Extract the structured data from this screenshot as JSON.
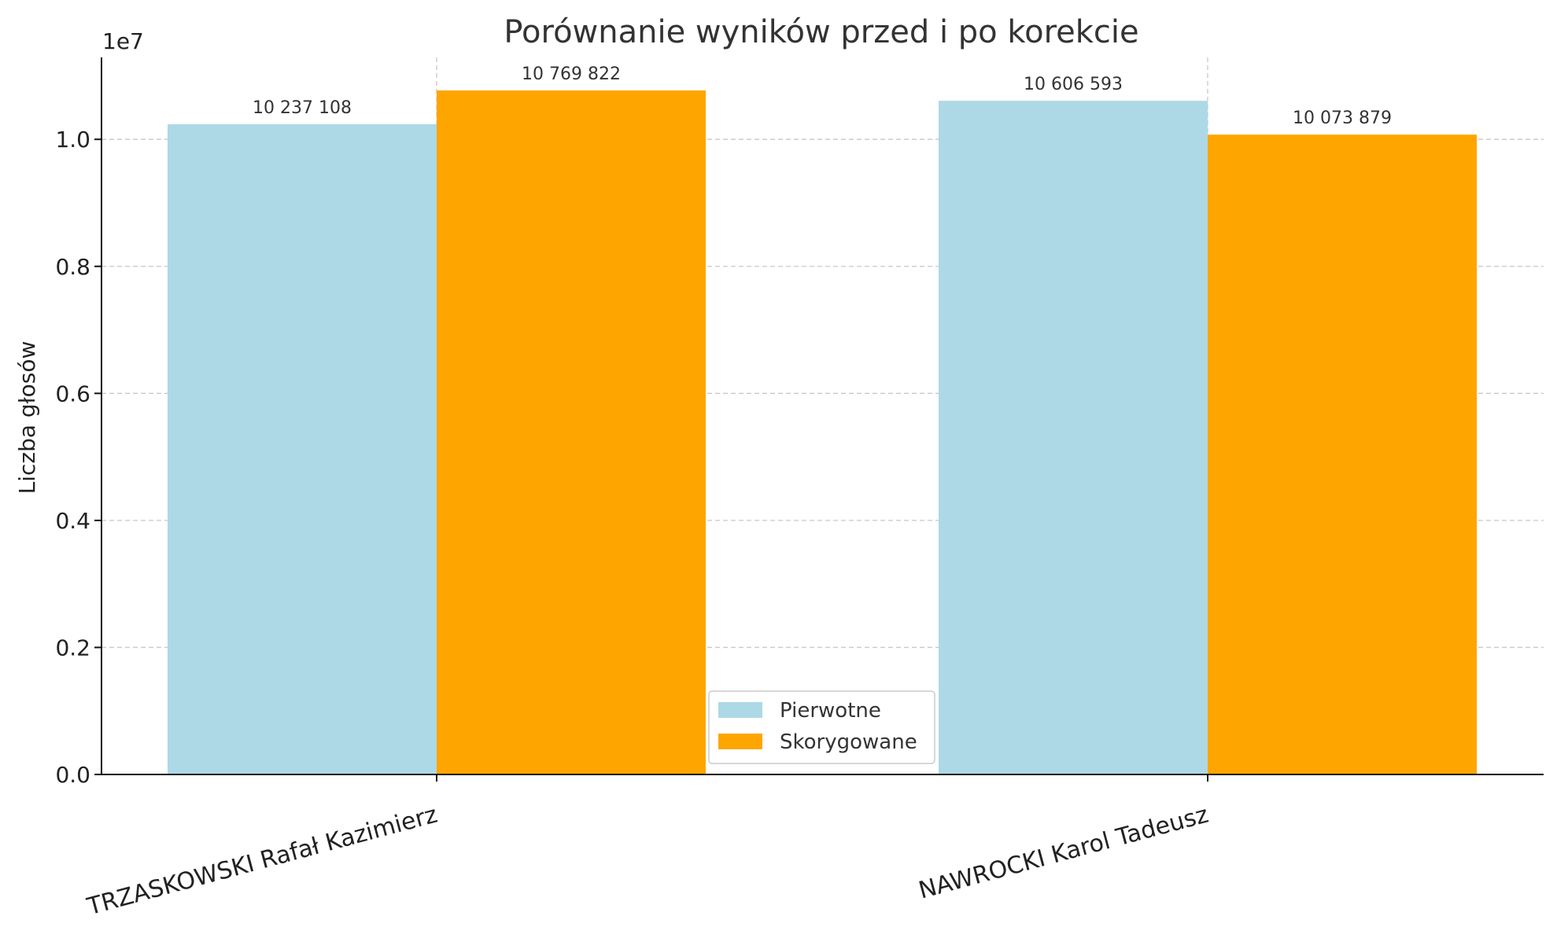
{
  "chart_data": {
    "type": "bar",
    "title": "Porównanie wyników przed i po korekcie",
    "xlabel": "",
    "ylabel": "Liczba głosów",
    "y_exponent_label": "1e7",
    "y_scale": 10000000,
    "ylim": [
      0,
      11290000
    ],
    "yticks": [
      0,
      2000000,
      4000000,
      6000000,
      8000000,
      10000000
    ],
    "ytick_labels": [
      "0.0",
      "0.2",
      "0.4",
      "0.6",
      "0.8",
      "1.0"
    ],
    "grid": true,
    "legend_position": "bottom-center",
    "categories": [
      "TRZASKOWSKI Rafał Kazimierz",
      "NAWROCKI Karol Tadeusz"
    ],
    "series": [
      {
        "name": "Pierwotne",
        "color": "#add8e6",
        "values": [
          10237108,
          10606593
        ],
        "value_labels": [
          "10 237 108",
          "10 606 593"
        ]
      },
      {
        "name": "Skorygowane",
        "color": "#ffa500",
        "values": [
          10769822,
          10073879
        ],
        "value_labels": [
          "10 769 822",
          "10 073 879"
        ]
      }
    ]
  }
}
